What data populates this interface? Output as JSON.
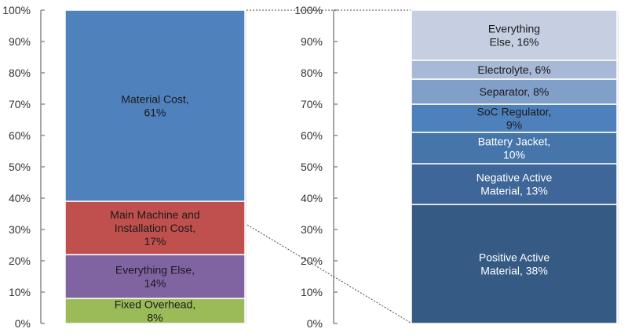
{
  "chart_data": [
    {
      "type": "bar",
      "stacked": true,
      "title": "",
      "xlabel": "",
      "ylabel": "",
      "ylim": [
        0,
        100
      ],
      "y_tick_labels": [
        "0%",
        "10%",
        "20%",
        "30%",
        "40%",
        "50%",
        "60%",
        "70%",
        "80%",
        "90%",
        "100%"
      ],
      "grid": false,
      "legend": "none",
      "segments": [
        {
          "label_lines": [
            "Fixed Overhead,",
            "8%"
          ],
          "value": 8,
          "color": "#9BBB59",
          "text_color": "#1a1a1a"
        },
        {
          "label_lines": [
            "Everything Else,",
            "14%"
          ],
          "value": 14,
          "color": "#8064A2",
          "text_color": "#1a1a1a"
        },
        {
          "label_lines": [
            "Main Machine and",
            "Installation Cost,",
            "17%"
          ],
          "value": 17,
          "color": "#C0504D",
          "text_color": "#1a1a1a"
        },
        {
          "label_lines": [
            "Material Cost,",
            "61%"
          ],
          "value": 61,
          "color": "#4F81BD",
          "text_color": "#1a1a1a"
        }
      ]
    },
    {
      "type": "bar",
      "stacked": true,
      "title": "",
      "xlabel": "",
      "ylabel": "",
      "ylim": [
        0,
        100
      ],
      "y_tick_labels": [
        "0%",
        "10%",
        "20%",
        "30%",
        "40%",
        "50%",
        "60%",
        "70%",
        "80%",
        "90%",
        "100%"
      ],
      "grid": false,
      "legend": "none",
      "segments": [
        {
          "label_lines": [
            "Positive Active",
            "Material, 38%"
          ],
          "value": 38,
          "color": "#355B85",
          "text_color": "#ffffff"
        },
        {
          "label_lines": [
            "Negative Active",
            "Material, 13%"
          ],
          "value": 13,
          "color": "#3E6698",
          "text_color": "#ffffff"
        },
        {
          "label_lines": [
            "Battery Jacket,",
            "10%"
          ],
          "value": 10,
          "color": "#4675AA",
          "text_color": "#ffffff"
        },
        {
          "label_lines": [
            "SoC Regulator,",
            "9%"
          ],
          "value": 9,
          "color": "#4E80BC",
          "text_color": "#1a1a1a"
        },
        {
          "label_lines": [
            "Separator, 8%"
          ],
          "value": 8,
          "color": "#809FC9",
          "text_color": "#1a1a1a"
        },
        {
          "label_lines": [
            "Electrolyte, 6%"
          ],
          "value": 6,
          "color": "#A7B9D6",
          "text_color": "#1a1a1a"
        },
        {
          "label_lines": [
            "Everything",
            "Else, 16%"
          ],
          "value": 16,
          "color": "#C5CFE1",
          "text_color": "#1a1a1a"
        }
      ]
    }
  ]
}
